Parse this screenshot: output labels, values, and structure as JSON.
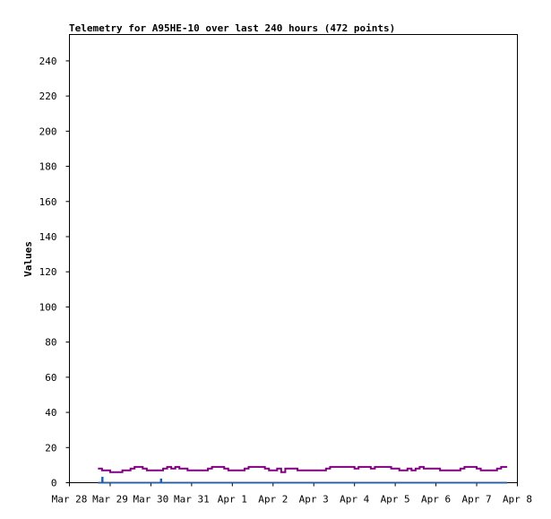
{
  "chart_data": {
    "type": "line",
    "title": "Telemetry for A95HE-10 over last 240 hours (472 points)",
    "xlabel": "",
    "ylabel": "Values",
    "x_tick_labels": [
      "Mar 28",
      "Mar 29",
      "Mar 30",
      "Mar 31",
      "Apr 1",
      "Apr 2",
      "Apr 3",
      "Apr 4",
      "Apr 5",
      "Apr 6",
      "Apr 7",
      "Apr 8"
    ],
    "xlim_days": [
      0,
      11
    ],
    "y_ticks": [
      0,
      20,
      40,
      60,
      80,
      100,
      120,
      140,
      160,
      180,
      200,
      220,
      240
    ],
    "ylim": [
      0,
      255
    ],
    "grid": false,
    "legend": "none",
    "series": [
      {
        "color": "#800080",
        "points": [
          [
            0.7,
            8
          ],
          [
            0.8,
            7
          ],
          [
            0.9,
            7
          ],
          [
            1.0,
            6
          ],
          [
            1.1,
            6
          ],
          [
            1.2,
            6
          ],
          [
            1.3,
            7
          ],
          [
            1.4,
            7
          ],
          [
            1.5,
            8
          ],
          [
            1.6,
            9
          ],
          [
            1.7,
            9
          ],
          [
            1.8,
            8
          ],
          [
            1.9,
            7
          ],
          [
            2.0,
            7
          ],
          [
            2.1,
            7
          ],
          [
            2.2,
            7
          ],
          [
            2.3,
            8
          ],
          [
            2.4,
            9
          ],
          [
            2.5,
            8
          ],
          [
            2.6,
            9
          ],
          [
            2.7,
            8
          ],
          [
            2.8,
            8
          ],
          [
            2.9,
            7
          ],
          [
            3.0,
            7
          ],
          [
            3.2,
            7
          ],
          [
            3.4,
            8
          ],
          [
            3.5,
            9
          ],
          [
            3.6,
            9
          ],
          [
            3.8,
            8
          ],
          [
            3.9,
            7
          ],
          [
            4.0,
            7
          ],
          [
            4.2,
            7
          ],
          [
            4.3,
            8
          ],
          [
            4.4,
            9
          ],
          [
            4.6,
            9
          ],
          [
            4.8,
            8
          ],
          [
            4.9,
            7
          ],
          [
            5.0,
            7
          ],
          [
            5.1,
            8
          ],
          [
            5.2,
            6
          ],
          [
            5.3,
            8
          ],
          [
            5.4,
            8
          ],
          [
            5.5,
            8
          ],
          [
            5.6,
            7
          ],
          [
            5.8,
            7
          ],
          [
            6.0,
            7
          ],
          [
            6.2,
            7
          ],
          [
            6.3,
            8
          ],
          [
            6.4,
            9
          ],
          [
            6.6,
            9
          ],
          [
            6.8,
            9
          ],
          [
            7.0,
            8
          ],
          [
            7.1,
            9
          ],
          [
            7.2,
            9
          ],
          [
            7.4,
            8
          ],
          [
            7.5,
            9
          ],
          [
            7.6,
            9
          ],
          [
            7.8,
            9
          ],
          [
            7.9,
            8
          ],
          [
            8.0,
            8
          ],
          [
            8.1,
            7
          ],
          [
            8.2,
            7
          ],
          [
            8.3,
            8
          ],
          [
            8.4,
            7
          ],
          [
            8.5,
            8
          ],
          [
            8.6,
            9
          ],
          [
            8.7,
            8
          ],
          [
            8.8,
            8
          ],
          [
            9.0,
            8
          ],
          [
            9.1,
            7
          ],
          [
            9.3,
            7
          ],
          [
            9.5,
            7
          ],
          [
            9.6,
            8
          ],
          [
            9.7,
            9
          ],
          [
            9.9,
            9
          ],
          [
            10.0,
            8
          ],
          [
            10.1,
            7
          ],
          [
            10.3,
            7
          ],
          [
            10.4,
            7
          ],
          [
            10.5,
            8
          ],
          [
            10.6,
            9
          ],
          [
            10.75,
            9
          ]
        ]
      },
      {
        "color": "#000000",
        "points": [
          [
            0.7,
            0
          ],
          [
            1.5,
            0
          ],
          [
            2.5,
            0
          ],
          [
            3.5,
            0
          ],
          [
            4.5,
            0
          ],
          [
            5.5,
            0
          ],
          [
            6.5,
            0
          ],
          [
            7.5,
            0
          ],
          [
            8.5,
            0
          ],
          [
            9.5,
            0
          ],
          [
            10.75,
            0
          ]
        ]
      },
      {
        "color": "#1a5fb4",
        "points": [
          [
            0.7,
            0
          ],
          [
            0.78,
            0
          ],
          [
            0.8,
            3
          ],
          [
            0.82,
            0
          ],
          [
            2.22,
            0
          ],
          [
            2.24,
            2
          ],
          [
            2.26,
            0
          ],
          [
            10.75,
            0
          ]
        ]
      }
    ]
  }
}
